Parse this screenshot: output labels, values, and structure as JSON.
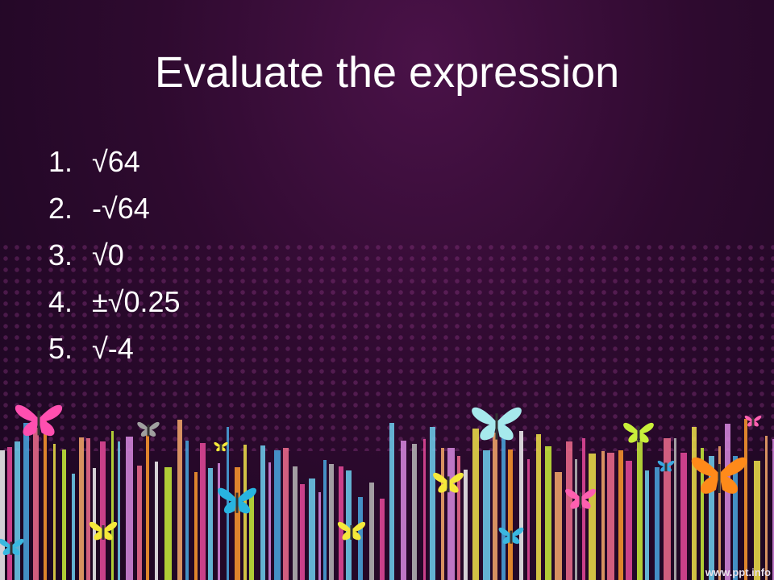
{
  "slide": {
    "title": "Evaluate the expression",
    "items": [
      {
        "number": "1.",
        "text": "√64"
      },
      {
        "number": "2.",
        "text": "-√64"
      },
      {
        "number": "3.",
        "text": "√0"
      },
      {
        "number": "4.",
        "text": "±√0.25"
      },
      {
        "number": "5.",
        "text": "√-4"
      }
    ],
    "watermark": "www.ppt.info"
  },
  "colors": {
    "background": "#2e0a2f",
    "text": "#ffffff",
    "stripe_palette": [
      "#f5f5f5",
      "#e84a9b",
      "#f0e24a",
      "#c9ef3a",
      "#6fd0f0",
      "#f7a96b",
      "#d889e0",
      "#4aa8e0",
      "#f06d8e",
      "#b8b8b8",
      "#ff9a2e"
    ]
  },
  "decorations": {
    "butterflies": [
      "pink-butterfly",
      "gray-butterfly",
      "yellow-butterfly",
      "cyan-butterfly",
      "yellow-butterfly",
      "yellow-butterfly",
      "pale-blue-butterfly",
      "yellow-butterfly",
      "pink-butterfly",
      "lime-butterfly",
      "blue-butterfly",
      "orange-butterfly",
      "pink-butterfly",
      "blue-butterfly",
      "teal-butterfly",
      "yellow-butterfly"
    ]
  }
}
